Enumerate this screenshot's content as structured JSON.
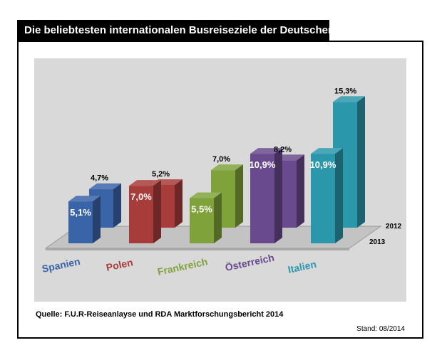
{
  "title": "Die beliebtesten internationalen Busreiseziele der Deutschen",
  "source": "Quelle: F.U.R-Reiseanlayse und RDA Marktforschungsbericht 2014",
  "stand": "Stand: 08/2014",
  "chart_data": {
    "type": "bar",
    "style": "3d-grouped",
    "title": "Die beliebtesten internationalen Busreiseziele der Deutschen",
    "categories": [
      "Spanien",
      "Polen",
      "Frankreich",
      "Österreich",
      "Italien"
    ],
    "series": [
      {
        "name": "2013",
        "values": [
          5.1,
          7.0,
          5.5,
          10.9,
          10.9
        ],
        "labels": [
          "5,1%",
          "7,0%",
          "5,5%",
          "10,9%",
          "10,9%"
        ]
      },
      {
        "name": "2012",
        "values": [
          4.7,
          5.2,
          7.0,
          8.2,
          15.3
        ],
        "labels": [
          "4,7%",
          "5,2%",
          "7,0%",
          "8,2%",
          "15,3%"
        ]
      }
    ],
    "colors": [
      "#3a64a8",
      "#a83c3a",
      "#7fa33a",
      "#6a4a8e",
      "#2b97ab"
    ],
    "depth_labels": [
      "2012",
      "2013"
    ],
    "unit": "%"
  }
}
